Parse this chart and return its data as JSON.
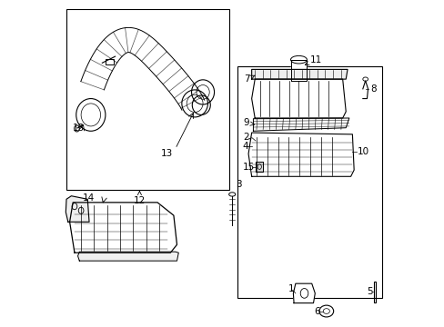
{
  "bg_color": "#ffffff",
  "line_color": "#000000",
  "font_size": 7.5
}
